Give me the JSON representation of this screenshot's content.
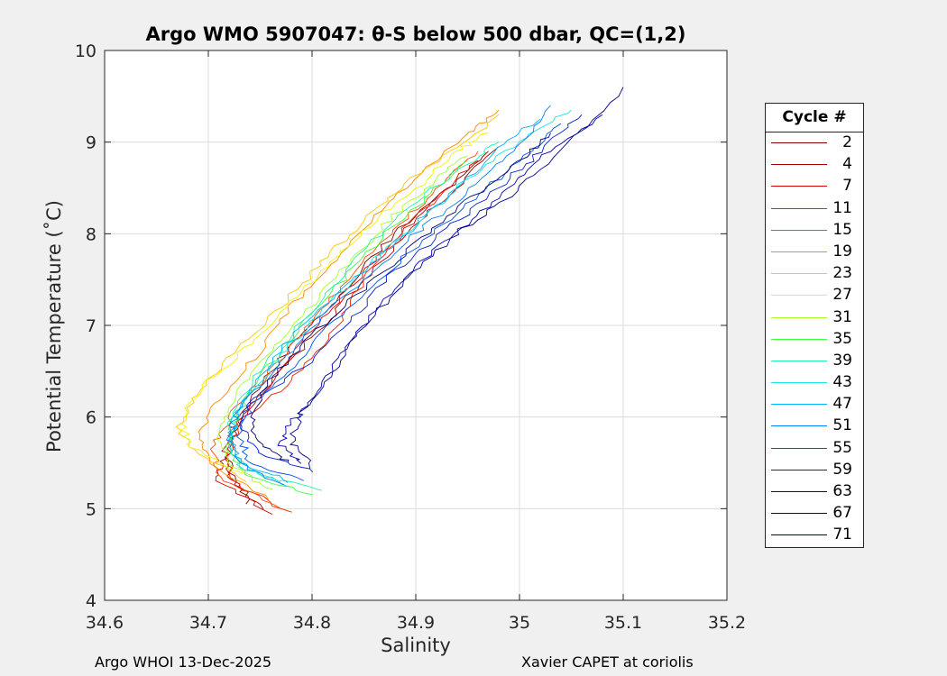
{
  "chart_data": {
    "type": "line",
    "title": "Argo WMO 5907047: θ-S below 500 dbar,  QC=(1,2)",
    "xlabel": "Salinity",
    "ylabel": "Potential Temperature (˚C)",
    "xlim": [
      34.6,
      35.2
    ],
    "ylim": [
      4,
      10
    ],
    "xticks": [
      "34.6",
      "34.7",
      "34.8",
      "34.9",
      "35",
      "35.1",
      "35.2"
    ],
    "yticks": [
      "4",
      "5",
      "6",
      "7",
      "8",
      "9",
      "10"
    ],
    "grid": true,
    "legend_title": "Cycle #",
    "legend_position": "outside-right",
    "series": [
      {
        "name": "2",
        "color": "#800000",
        "points": [
          [
            34.74,
            5.05
          ],
          [
            34.72,
            5.4
          ],
          [
            34.72,
            5.7
          ],
          [
            34.73,
            6.0
          ],
          [
            34.76,
            6.5
          ],
          [
            34.8,
            7.0
          ],
          [
            34.84,
            7.5
          ],
          [
            34.88,
            8.0
          ],
          [
            34.93,
            8.5
          ],
          [
            34.97,
            8.9
          ]
        ]
      },
      {
        "name": "4",
        "color": "#a60000",
        "points": [
          [
            34.75,
            5.0
          ],
          [
            34.72,
            5.35
          ],
          [
            34.72,
            5.65
          ],
          [
            34.73,
            5.95
          ],
          [
            34.77,
            6.5
          ],
          [
            34.81,
            7.0
          ],
          [
            34.85,
            7.5
          ],
          [
            34.89,
            8.0
          ],
          [
            34.94,
            8.5
          ],
          [
            34.98,
            8.95
          ]
        ]
      },
      {
        "name": "7",
        "color": "#d00000",
        "points": [
          [
            34.76,
            4.95
          ],
          [
            34.71,
            5.3
          ],
          [
            34.715,
            5.6
          ],
          [
            34.725,
            5.9
          ],
          [
            34.76,
            6.4
          ],
          [
            34.8,
            6.95
          ],
          [
            34.84,
            7.45
          ],
          [
            34.88,
            7.95
          ],
          [
            34.92,
            8.4
          ],
          [
            34.96,
            8.8
          ]
        ]
      },
      {
        "name": "11",
        "color": "#f22000",
        "points": [
          [
            34.78,
            4.95
          ],
          [
            34.72,
            5.3
          ],
          [
            34.72,
            5.6
          ],
          [
            34.73,
            5.95
          ],
          [
            34.78,
            6.4
          ],
          [
            34.82,
            6.9
          ],
          [
            34.85,
            7.5
          ],
          [
            34.89,
            8.05
          ],
          [
            34.93,
            8.5
          ]
        ]
      },
      {
        "name": "15",
        "color": "#ff4a00",
        "points": [
          [
            34.77,
            5.0
          ],
          [
            34.71,
            5.35
          ],
          [
            34.705,
            5.65
          ],
          [
            34.72,
            6.0
          ],
          [
            34.76,
            6.5
          ],
          [
            34.8,
            7.05
          ],
          [
            34.84,
            7.55
          ],
          [
            34.88,
            8.05
          ],
          [
            34.92,
            8.5
          ],
          [
            34.96,
            8.9
          ]
        ]
      },
      {
        "name": "19",
        "color": "#ff8a00",
        "points": [
          [
            34.76,
            5.1
          ],
          [
            34.7,
            5.5
          ],
          [
            34.69,
            5.8
          ],
          [
            34.71,
            6.2
          ],
          [
            34.75,
            6.7
          ],
          [
            34.78,
            7.2
          ],
          [
            34.82,
            7.65
          ],
          [
            34.86,
            8.2
          ],
          [
            34.9,
            8.6
          ],
          [
            34.95,
            9.1
          ],
          [
            34.98,
            9.35
          ]
        ]
      },
      {
        "name": "23",
        "color": "#ffc800",
        "points": [
          [
            34.74,
            5.3
          ],
          [
            34.69,
            5.6
          ],
          [
            34.67,
            5.9
          ],
          [
            34.69,
            6.3
          ],
          [
            34.73,
            6.75
          ],
          [
            34.77,
            7.2
          ],
          [
            34.81,
            7.7
          ],
          [
            34.85,
            8.15
          ],
          [
            34.89,
            8.55
          ],
          [
            34.94,
            8.95
          ],
          [
            34.98,
            9.3
          ]
        ]
      },
      {
        "name": "27",
        "color": "#f2f20c",
        "points": [
          [
            34.73,
            5.4
          ],
          [
            34.68,
            5.7
          ],
          [
            34.675,
            6.0
          ],
          [
            34.7,
            6.4
          ],
          [
            34.74,
            6.8
          ],
          [
            34.78,
            7.25
          ],
          [
            34.82,
            7.7
          ],
          [
            34.86,
            8.15
          ],
          [
            34.9,
            8.5
          ],
          [
            34.94,
            8.9
          ],
          [
            34.97,
            9.1
          ]
        ]
      },
      {
        "name": "31",
        "color": "#a6ff26",
        "points": [
          [
            34.76,
            5.2
          ],
          [
            34.72,
            5.5
          ],
          [
            34.71,
            5.8
          ],
          [
            34.72,
            6.1
          ],
          [
            34.75,
            6.6
          ],
          [
            34.79,
            7.1
          ],
          [
            34.83,
            7.6
          ],
          [
            34.87,
            8.1
          ],
          [
            34.91,
            8.5
          ],
          [
            34.95,
            8.85
          ]
        ]
      },
      {
        "name": "35",
        "color": "#40ff40",
        "points": [
          [
            34.8,
            5.15
          ],
          [
            34.74,
            5.35
          ],
          [
            34.72,
            5.65
          ],
          [
            34.725,
            6.0
          ],
          [
            34.755,
            6.5
          ],
          [
            34.79,
            7.0
          ],
          [
            34.83,
            7.5
          ],
          [
            34.87,
            8.0
          ],
          [
            34.91,
            8.4
          ],
          [
            34.95,
            8.8
          ]
        ]
      },
      {
        "name": "39",
        "color": "#26f2a6",
        "points": [
          [
            34.81,
            5.2
          ],
          [
            34.75,
            5.35
          ],
          [
            34.72,
            5.6
          ],
          [
            34.72,
            6.0
          ],
          [
            34.75,
            6.5
          ],
          [
            34.79,
            7.05
          ],
          [
            34.83,
            7.55
          ],
          [
            34.87,
            8.05
          ],
          [
            34.91,
            8.45
          ],
          [
            34.96,
            8.85
          ],
          [
            34.98,
            9.0
          ]
        ]
      },
      {
        "name": "43",
        "color": "#1ae6e6",
        "points": [
          [
            34.78,
            5.25
          ],
          [
            34.73,
            5.45
          ],
          [
            34.72,
            5.75
          ],
          [
            34.73,
            6.05
          ],
          [
            34.76,
            6.55
          ],
          [
            34.8,
            7.05
          ],
          [
            34.85,
            7.6
          ],
          [
            34.9,
            8.1
          ],
          [
            34.95,
            8.6
          ],
          [
            35.0,
            9.0
          ],
          [
            35.05,
            9.35
          ]
        ]
      },
      {
        "name": "47",
        "color": "#00b4ff",
        "points": [
          [
            34.78,
            5.3
          ],
          [
            34.73,
            5.5
          ],
          [
            34.72,
            5.8
          ],
          [
            34.73,
            6.1
          ],
          [
            34.76,
            6.6
          ],
          [
            34.8,
            7.1
          ],
          [
            34.85,
            7.6
          ],
          [
            34.9,
            8.1
          ],
          [
            34.94,
            8.5
          ],
          [
            34.98,
            8.95
          ],
          [
            35.02,
            9.25
          ]
        ]
      },
      {
        "name": "51",
        "color": "#0080ff",
        "points": [
          [
            34.77,
            5.25
          ],
          [
            34.73,
            5.5
          ],
          [
            34.72,
            5.8
          ],
          [
            34.73,
            6.1
          ],
          [
            34.77,
            6.6
          ],
          [
            34.81,
            7.1
          ],
          [
            34.86,
            7.6
          ],
          [
            34.91,
            8.1
          ],
          [
            34.96,
            8.55
          ],
          [
            35.0,
            8.95
          ],
          [
            35.03,
            9.4
          ]
        ]
      },
      {
        "name": "55",
        "color": "#0050f0",
        "points": [
          [
            34.79,
            5.3
          ],
          [
            34.74,
            5.5
          ],
          [
            34.73,
            5.8
          ],
          [
            34.74,
            6.1
          ],
          [
            34.78,
            6.55
          ],
          [
            34.82,
            7.05
          ],
          [
            34.87,
            7.55
          ],
          [
            34.92,
            8.05
          ],
          [
            34.97,
            8.5
          ],
          [
            35.01,
            8.9
          ],
          [
            35.04,
            9.2
          ]
        ]
      },
      {
        "name": "59",
        "color": "#0020d0",
        "points": [
          [
            34.8,
            5.4
          ],
          [
            34.75,
            5.6
          ],
          [
            34.73,
            5.9
          ],
          [
            34.74,
            6.15
          ],
          [
            34.8,
            6.6
          ],
          [
            34.84,
            7.1
          ],
          [
            34.88,
            7.6
          ],
          [
            34.93,
            8.05
          ],
          [
            34.98,
            8.5
          ],
          [
            35.02,
            8.9
          ],
          [
            35.06,
            9.3
          ]
        ]
      },
      {
        "name": "63",
        "color": "#0000b0",
        "points": [
          [
            34.79,
            5.5
          ],
          [
            34.77,
            5.7
          ],
          [
            34.78,
            5.95
          ],
          [
            34.8,
            6.2
          ],
          [
            34.83,
            6.7
          ],
          [
            34.86,
            7.15
          ],
          [
            34.9,
            7.65
          ],
          [
            34.95,
            8.1
          ],
          [
            34.99,
            8.5
          ],
          [
            35.03,
            8.9
          ],
          [
            35.08,
            9.3
          ]
        ]
      },
      {
        "name": "67",
        "color": "#000090",
        "points": [
          [
            34.8,
            5.45
          ],
          [
            34.78,
            5.75
          ],
          [
            34.79,
            6.05
          ],
          [
            34.82,
            6.5
          ],
          [
            34.85,
            7.0
          ],
          [
            34.89,
            7.5
          ],
          [
            34.94,
            8.0
          ],
          [
            34.99,
            8.4
          ],
          [
            35.04,
            8.9
          ],
          [
            35.1,
            9.6
          ]
        ]
      },
      {
        "name": "71",
        "color": "#000070",
        "points": [
          [
            34.78,
            5.5
          ],
          [
            34.75,
            5.7
          ],
          [
            34.74,
            6.0
          ],
          [
            34.76,
            6.4
          ],
          [
            34.8,
            6.9
          ],
          [
            34.85,
            7.4
          ],
          [
            34.9,
            7.9
          ],
          [
            34.95,
            8.35
          ],
          [
            35.0,
            8.8
          ],
          [
            35.03,
            9.1
          ]
        ]
      }
    ]
  },
  "footer": {
    "left": "Argo WHOI 13-Dec-2025",
    "right": "Xavier CAPET at coriolis"
  }
}
